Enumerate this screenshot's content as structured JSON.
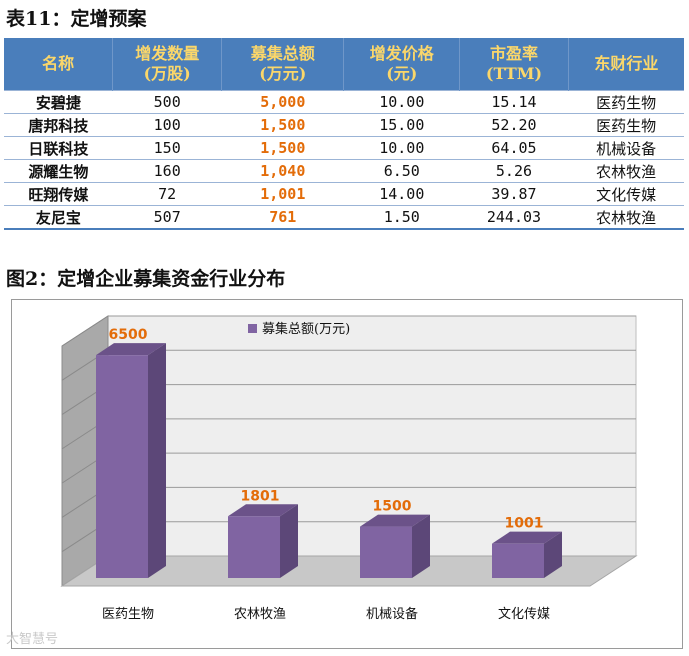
{
  "caption_table": "表11：定增预案",
  "caption_chart": "图2：定增企业募集资金行业分布",
  "table": {
    "headers": [
      [
        "名称"
      ],
      [
        "增发数量",
        "(万股)"
      ],
      [
        "募集总额",
        "(万元)"
      ],
      [
        "增发价格",
        "(元)"
      ],
      [
        "市盈率",
        "(TTM)"
      ],
      [
        "东财行业"
      ]
    ],
    "rows": [
      [
        "安碧捷",
        "500",
        "5,000",
        "10.00",
        "15.14",
        "医药生物"
      ],
      [
        "唐邦科技",
        "100",
        "1,500",
        "15.00",
        "52.20",
        "医药生物"
      ],
      [
        "日联科技",
        "150",
        "1,500",
        "10.00",
        "64.05",
        "机械设备"
      ],
      [
        "源耀生物",
        "160",
        "1,040",
        "6.50",
        "5.26",
        "农林牧渔"
      ],
      [
        "旺翔传媒",
        "72",
        "1,001",
        "14.00",
        "39.87",
        "文化传媒"
      ],
      [
        "友尼宝",
        "507",
        "761",
        "1.50",
        "244.03",
        "农林牧渔"
      ]
    ]
  },
  "chart_data": {
    "type": "bar",
    "categories": [
      "医药生物",
      "农林牧渔",
      "机械设备",
      "文化传媒"
    ],
    "series": [
      {
        "name": "募集总额(万元)",
        "values": [
          6500,
          1801,
          1500,
          1001
        ]
      }
    ],
    "data_labels": [
      "6500",
      "1801",
      "1500",
      "1001"
    ],
    "ylim": [
      0,
      7000
    ],
    "grid": true,
    "legend_position": "top-center",
    "colors": {
      "bar_front": "#8064a2",
      "bar_side": "#5c4778",
      "bar_top": "#6b5289",
      "data_label": "#e36c09",
      "wall": "#eeeeee",
      "floor": "#c8c8c8"
    }
  },
  "watermark": "大智慧号"
}
